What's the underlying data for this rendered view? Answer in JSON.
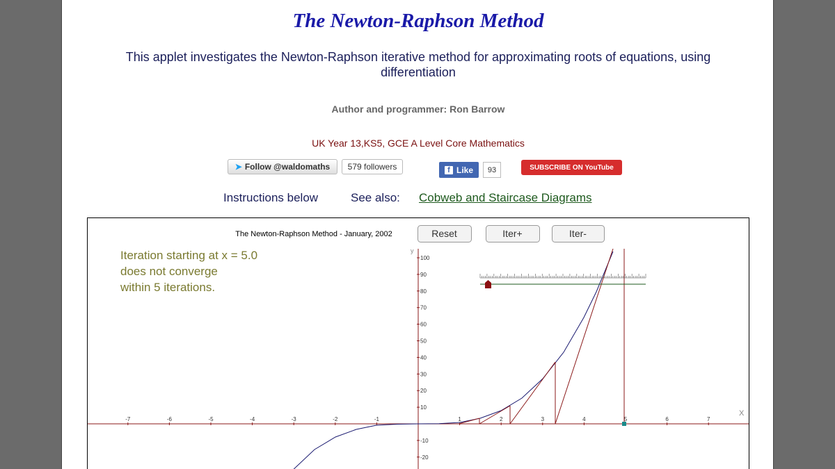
{
  "header": {
    "title": "The Newton-Raphson Method",
    "subtitle": "This applet investigates the Newton-Raphson iterative method for approximating roots of equations, using differentiation",
    "author": "Author and programmer: Ron Barrow",
    "course": "UK Year 13,KS5, GCE A Level Core Mathematics"
  },
  "social": {
    "twitter_follow": "Follow @waldomaths",
    "twitter_count": "579 followers",
    "fb_like": "Like",
    "fb_count": "93",
    "youtube": "SUBSCRIBE ON YouTube"
  },
  "nav": {
    "instructions": "Instructions below",
    "see_also": "See also:",
    "link": "Cobweb and Staircase Diagrams"
  },
  "applet": {
    "caption": "The Newton-Raphson Method - January, 2002",
    "buttons": [
      "Reset",
      "Iter+",
      "Iter-"
    ],
    "message": [
      "Iteration starting at x = 5.0",
      "does not converge",
      "within 5 iterations."
    ],
    "x_label": "X",
    "y_label": "y",
    "x_ticks": [
      -7,
      -6,
      -5,
      -4,
      -3,
      -2,
      -1,
      1,
      2,
      3,
      4,
      5,
      6,
      7
    ],
    "y_ticks": [
      100,
      90,
      80,
      70,
      60,
      50,
      40,
      30,
      20,
      10,
      -10,
      -20
    ]
  }
}
